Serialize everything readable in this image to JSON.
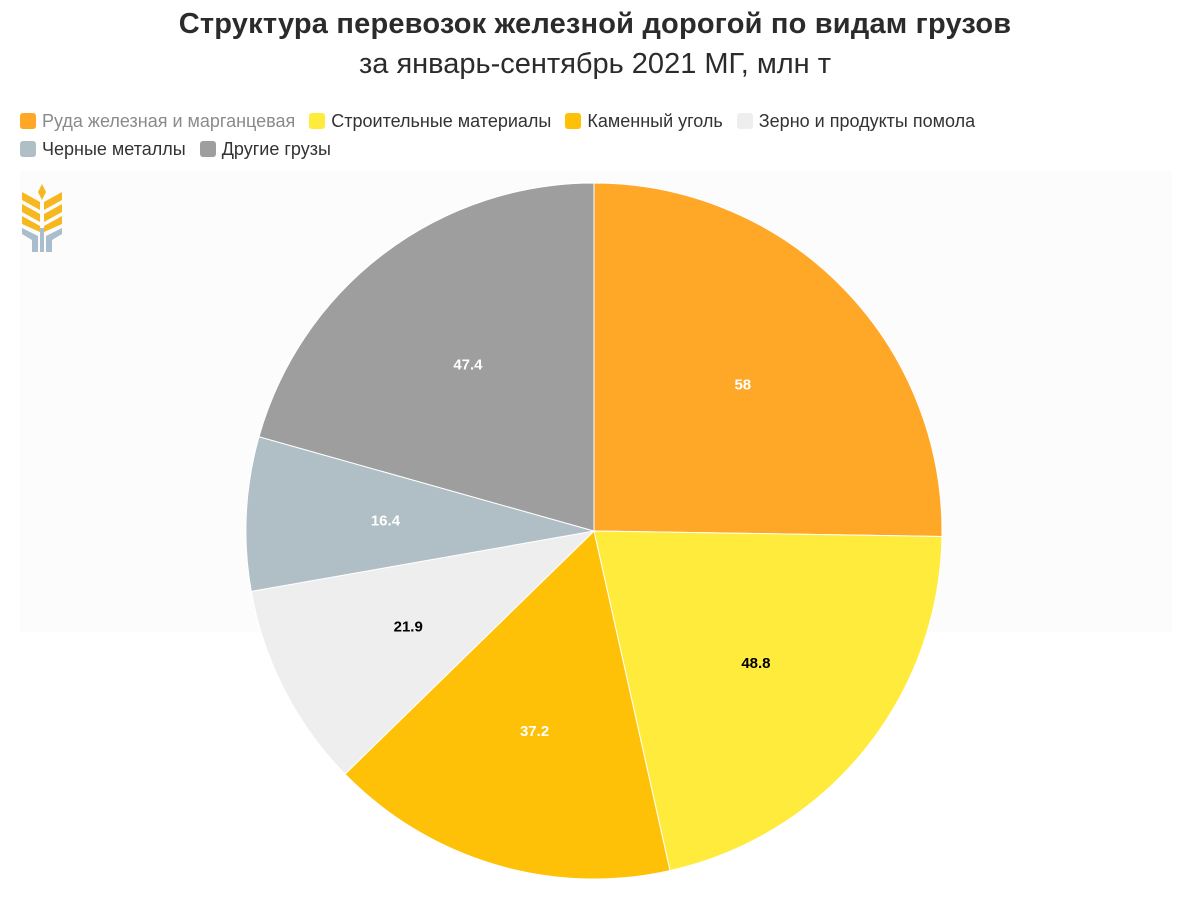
{
  "chart_data": {
    "type": "pie",
    "title": "Структура перевозок железной дорогой по видам грузов",
    "subtitle": "за январь-сентябрь 2021 МГ, млн т",
    "categories": [
      "Руда железная и марганцевая",
      "Строительные материалы",
      "Каменный уголь",
      "Зерно и продукты помола",
      "Черные металлы",
      "Другие грузы"
    ],
    "values": [
      58,
      48.8,
      37.2,
      21.9,
      16.4,
      47.4
    ],
    "value_labels": [
      "58",
      "48.8",
      "37.2",
      "21.9",
      "16.4",
      "47.4"
    ],
    "colors": [
      "#FFA726",
      "#FFEB3B",
      "#FFC107",
      "#EEEEEE",
      "#B0BEC5",
      "#9E9E9E"
    ],
    "label_colors": [
      "#ffffff",
      "#000000",
      "#ffffff",
      "#000000",
      "#ffffff",
      "#ffffff"
    ],
    "legend_position": "top-left",
    "legend_muted_index": 0
  }
}
